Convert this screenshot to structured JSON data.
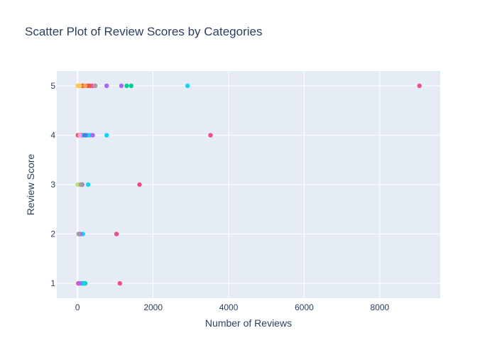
{
  "chart_data": {
    "type": "scatter",
    "title": "Scatter Plot of Review Scores by Categories",
    "xlabel": "Number of Reviews",
    "ylabel": "Review Score",
    "xlim": [
      -550,
      9600
    ],
    "ylim": [
      0.7,
      5.3
    ],
    "xticks": [
      0,
      2000,
      4000,
      6000,
      8000
    ],
    "xtick_labels": [
      "0",
      "2000",
      "4000",
      "6000",
      "8000"
    ],
    "yticks": [
      1,
      2,
      3,
      4,
      5
    ],
    "ytick_labels": [
      "1",
      "2",
      "3",
      "4",
      "5"
    ],
    "grid": true,
    "legend": "none",
    "plot_background": "#e5ecf6",
    "series": [
      {
        "color": "#ef553b",
        "points": [
          {
            "x": 10,
            "y": 4
          },
          {
            "x": 50,
            "y": 4
          },
          {
            "x": 100,
            "y": 4
          },
          {
            "x": 130,
            "y": 5
          },
          {
            "x": 150,
            "y": 5
          },
          {
            "x": 270,
            "y": 5
          },
          {
            "x": 330,
            "y": 5
          }
        ]
      },
      {
        "color": "#ef5081",
        "points": [
          {
            "x": 9050,
            "y": 5
          },
          {
            "x": 3520,
            "y": 4
          },
          {
            "x": 1640,
            "y": 3
          },
          {
            "x": 1030,
            "y": 2
          },
          {
            "x": 1120,
            "y": 1
          },
          {
            "x": 400,
            "y": 5
          },
          {
            "x": 40,
            "y": 2
          },
          {
            "x": 20,
            "y": 1
          },
          {
            "x": 90,
            "y": 4
          }
        ]
      },
      {
        "color": "#00cc96",
        "points": [
          {
            "x": 1420,
            "y": 5
          },
          {
            "x": 1300,
            "y": 5
          },
          {
            "x": 120,
            "y": 1
          },
          {
            "x": 200,
            "y": 1
          },
          {
            "x": 170,
            "y": 4
          },
          {
            "x": 250,
            "y": 4
          }
        ]
      },
      {
        "color": "#19d3f3",
        "points": [
          {
            "x": 2910,
            "y": 5
          },
          {
            "x": 770,
            "y": 4
          },
          {
            "x": 280,
            "y": 3
          },
          {
            "x": 170,
            "y": 1
          },
          {
            "x": 140,
            "y": 2
          },
          {
            "x": 330,
            "y": 4
          }
        ]
      },
      {
        "color": "#ab63fa",
        "points": [
          {
            "x": 1160,
            "y": 5
          },
          {
            "x": 770,
            "y": 5
          },
          {
            "x": 400,
            "y": 4
          },
          {
            "x": 70,
            "y": 2
          },
          {
            "x": 50,
            "y": 1
          }
        ]
      },
      {
        "color": "#fecb52",
        "points": [
          {
            "x": 5,
            "y": 5
          },
          {
            "x": 30,
            "y": 5
          },
          {
            "x": 60,
            "y": 5
          }
        ]
      },
      {
        "color": "#b6e880",
        "points": [
          {
            "x": 5,
            "y": 3
          },
          {
            "x": 20,
            "y": 3
          },
          {
            "x": 40,
            "y": 3
          }
        ]
      },
      {
        "color": "#ffa15a",
        "points": [
          {
            "x": 200,
            "y": 5
          },
          {
            "x": 80,
            "y": 3
          }
        ]
      },
      {
        "color": "#636efa",
        "points": [
          {
            "x": 120,
            "y": 3
          },
          {
            "x": 200,
            "y": 4
          }
        ]
      },
      {
        "color": "#ff97ff",
        "points": [
          {
            "x": 460,
            "y": 5
          },
          {
            "x": 60,
            "y": 4
          }
        ]
      },
      {
        "color": "#a0a0a0",
        "points": [
          {
            "x": 470,
            "y": 5
          },
          {
            "x": 100,
            "y": 3
          },
          {
            "x": 30,
            "y": 2
          }
        ]
      }
    ]
  }
}
